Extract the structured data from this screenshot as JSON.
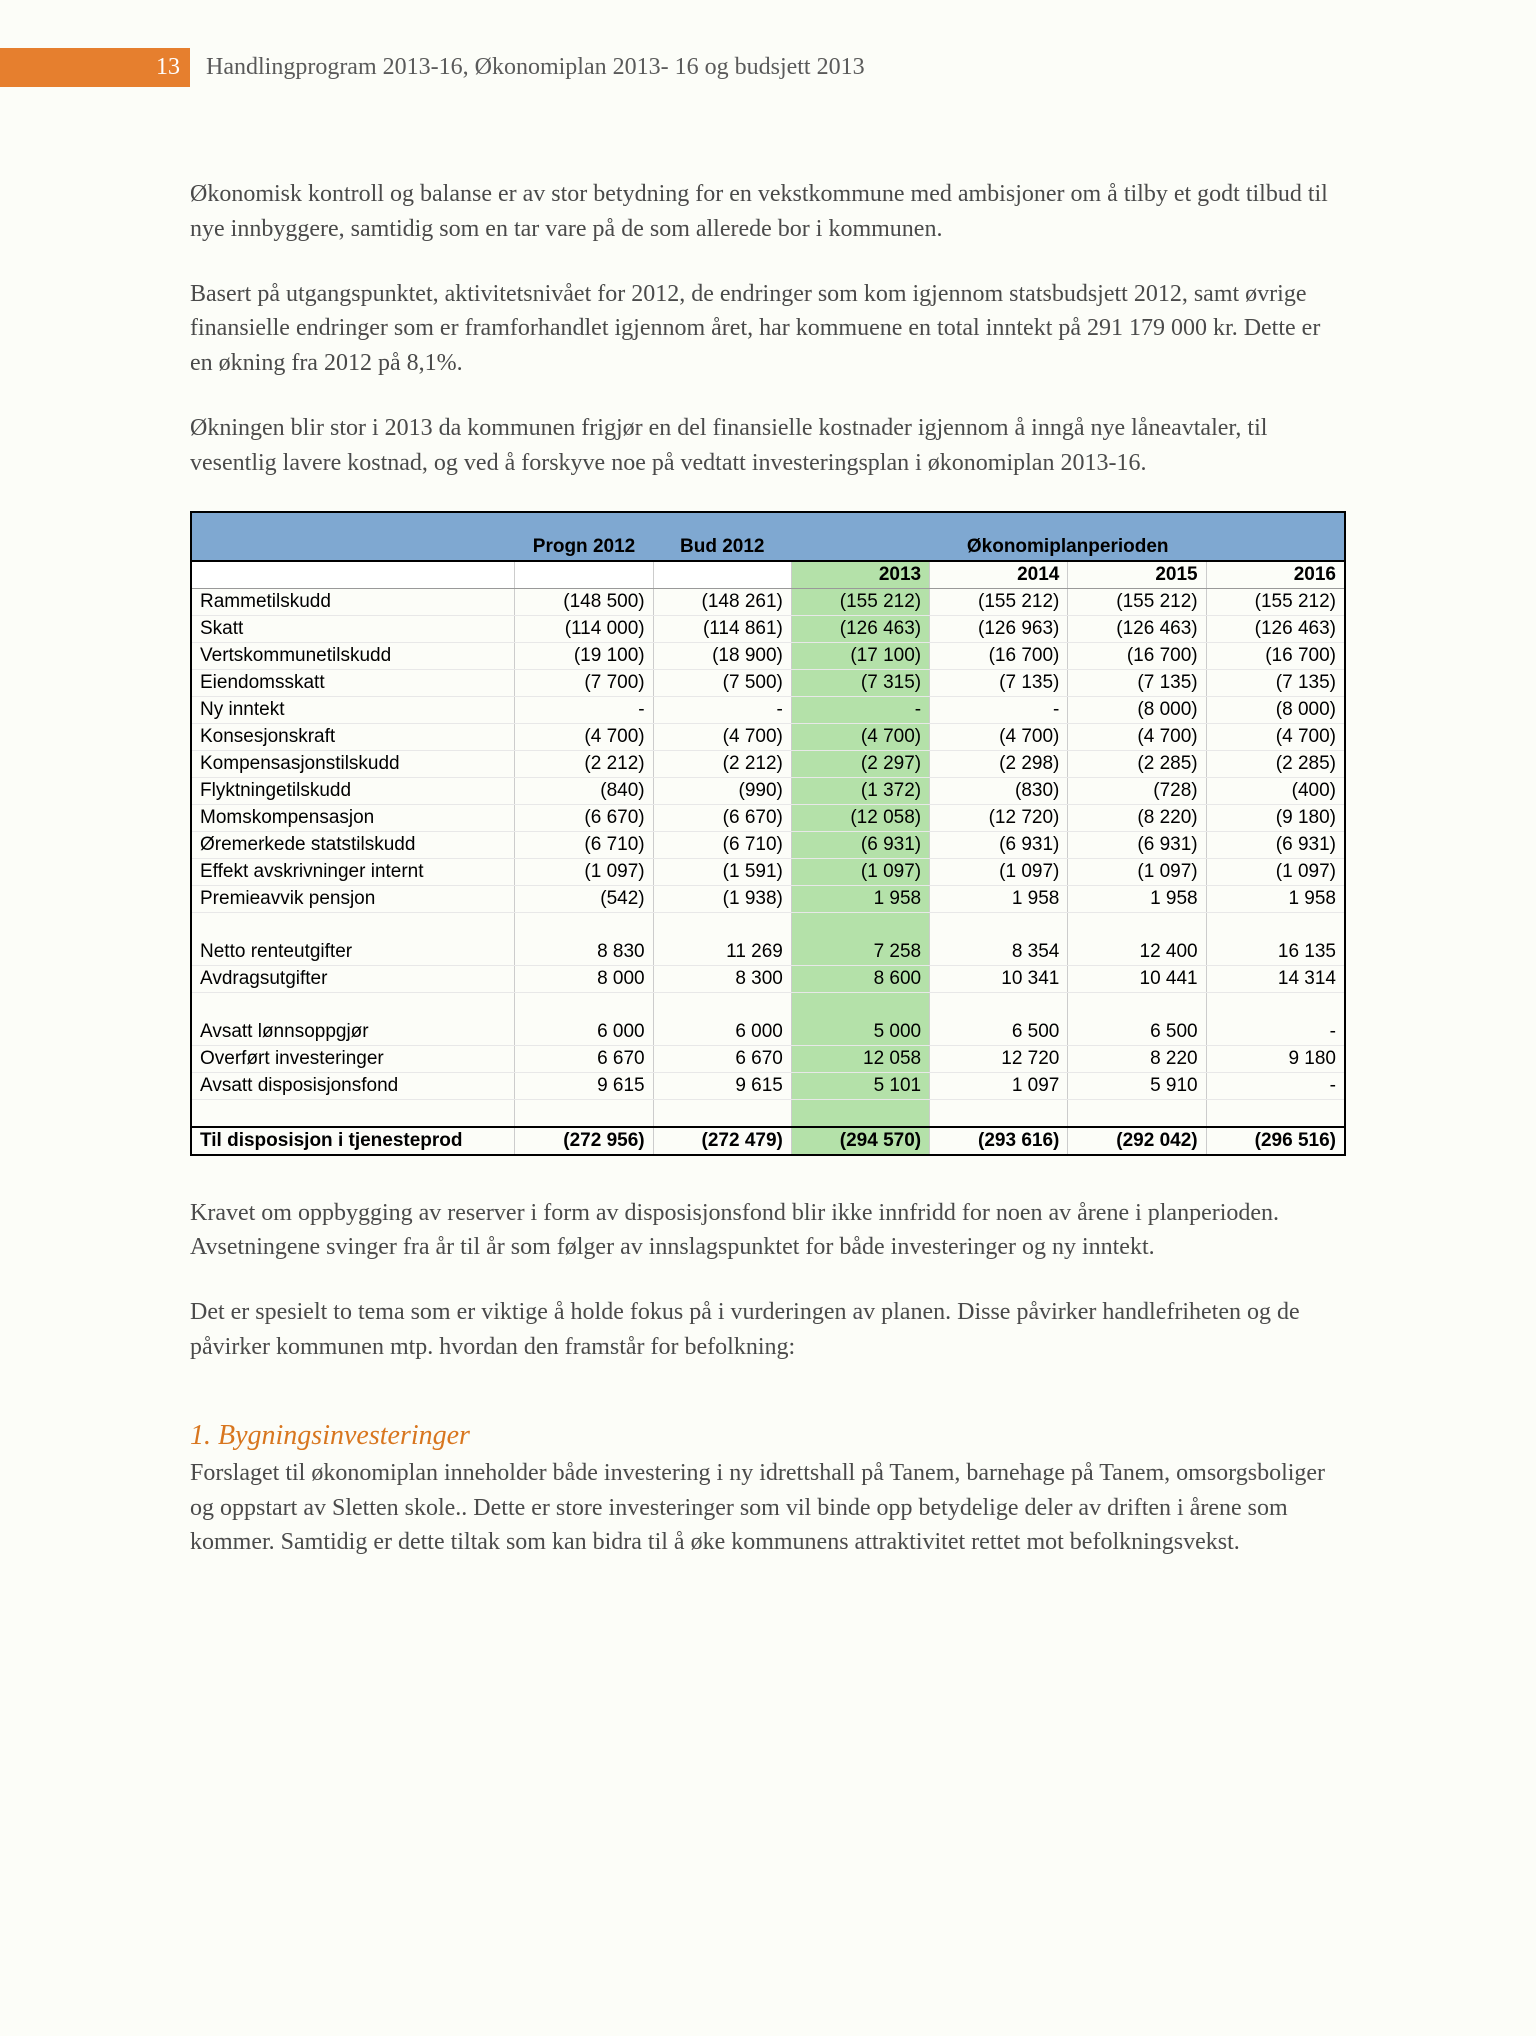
{
  "header": {
    "page_number": "13",
    "title": "Handlingprogram 2013-16, Økonomiplan 2013- 16 og budsjett 2013"
  },
  "paragraphs": {
    "p1": "Økonomisk kontroll og balanse er av stor betydning for en vekstkommune med ambisjoner om å tilby et godt tilbud til nye innbyggere, samtidig som en tar vare på de som allerede bor i kommunen.",
    "p2": "Basert på utgangspunktet, aktivitetsnivået for 2012, de endringer som kom igjennom statsbudsjett 2012, samt øvrige finansielle endringer som er framforhandlet igjennom året, har kommuene en total inntekt på 291 179 000 kr. Dette er en økning fra 2012 på 8,1%.",
    "p3": "Økningen blir stor i 2013 da kommunen frigjør en del finansielle kostnader igjennom å inngå nye låneavtaler, til vesentlig lavere kostnad, og ved å forskyve noe på vedtatt investeringsplan i økonomiplan 2013-16.",
    "p4": "Kravet om oppbygging av reserver i form av disposisjonsfond blir ikke innfridd for noen av årene i planperioden. Avsetningene svinger fra år til år som følger av innslagspunktet for både investeringer og ny inntekt.",
    "p5": "Det er spesielt to tema som er viktige å holde fokus på i vurderingen av planen. Disse påvirker handlefriheten og de påvirker kommunen mtp. hvordan den framstår for befolkning:",
    "section1_title": "1. Bygningsinvesteringer",
    "p6": "Forslaget til økonomiplan inneholder både investering i ny idrettshall på Tanem, barnehage på Tanem, omsorgsboliger og oppstart av Sletten skole.. Dette er store investeringer som vil binde opp betydelige deler av driften i årene som kommer. Samtidig er dette tiltak som kan bidra til å øke kommunens attraktivitet rettet mot befolkningsvekst."
  },
  "table": {
    "type": "table",
    "header_merge": {
      "progn": "Progn 2012",
      "bud": "Bud 2012",
      "plan": "Økonomiplanperioden"
    },
    "years": [
      "2013",
      "2014",
      "2015",
      "2016"
    ],
    "highlight_col_index": 2,
    "colors": {
      "header_bg": "#7fa8d1",
      "highlight_bg": "#b4e1a9",
      "border": "#000000",
      "grid": "#cccccc",
      "row_line": "#e8e8e8"
    },
    "fontsize": 19,
    "rows": [
      {
        "label": "Rammetilskudd",
        "v": [
          "(148 500)",
          "(148 261)",
          "(155 212)",
          "(155 212)",
          "(155 212)",
          "(155 212)"
        ]
      },
      {
        "label": "Skatt",
        "v": [
          "(114 000)",
          "(114 861)",
          "(126 463)",
          "(126 963)",
          "(126 463)",
          "(126 463)"
        ]
      },
      {
        "label": "Vertskommunetilskudd",
        "v": [
          "(19 100)",
          "(18 900)",
          "(17 100)",
          "(16 700)",
          "(16 700)",
          "(16 700)"
        ]
      },
      {
        "label": "Eiendomsskatt",
        "v": [
          "(7 700)",
          "(7 500)",
          "(7 315)",
          "(7 135)",
          "(7 135)",
          "(7 135)"
        ]
      },
      {
        "label": "Ny inntekt",
        "v": [
          "-",
          "-",
          "-",
          "-",
          "(8 000)",
          "(8 000)"
        ]
      },
      {
        "label": "Konsesjonskraft",
        "v": [
          "(4 700)",
          "(4 700)",
          "(4 700)",
          "(4 700)",
          "(4 700)",
          "(4 700)"
        ]
      },
      {
        "label": "Kompensasjonstilskudd",
        "v": [
          "(2 212)",
          "(2 212)",
          "(2 297)",
          "(2 298)",
          "(2 285)",
          "(2 285)"
        ]
      },
      {
        "label": "Flyktningetilskudd",
        "v": [
          "(840)",
          "(990)",
          "(1 372)",
          "(830)",
          "(728)",
          "(400)"
        ]
      },
      {
        "label": "Momskompensasjon",
        "v": [
          "(6 670)",
          "(6 670)",
          "(12 058)",
          "(12 720)",
          "(8 220)",
          "(9 180)"
        ]
      },
      {
        "label": "Øremerkede statstilskudd",
        "v": [
          "(6 710)",
          "(6 710)",
          "(6 931)",
          "(6 931)",
          "(6 931)",
          "(6 931)"
        ]
      },
      {
        "label": "Effekt avskrivninger internt",
        "v": [
          "(1 097)",
          "(1 591)",
          "(1 097)",
          "(1 097)",
          "(1 097)",
          "(1 097)"
        ]
      },
      {
        "label": "Premieavvik pensjon",
        "v": [
          "(542)",
          "(1 938)",
          "1 958",
          "1 958",
          "1 958",
          "1 958"
        ]
      },
      {
        "blank": true
      },
      {
        "label": "Netto renteutgifter",
        "v": [
          "8 830",
          "11 269",
          "7 258",
          "8 354",
          "12 400",
          "16 135"
        ]
      },
      {
        "label": "Avdragsutgifter",
        "v": [
          "8 000",
          "8 300",
          "8 600",
          "10 341",
          "10 441",
          "14 314"
        ]
      },
      {
        "blank": true
      },
      {
        "label": "Avsatt lønnsoppgjør",
        "v": [
          "6 000",
          "6 000",
          "5 000",
          "6 500",
          "6 500",
          "-"
        ]
      },
      {
        "label": "Overført investeringer",
        "v": [
          "6 670",
          "6 670",
          "12 058",
          "12 720",
          "8 220",
          "9 180"
        ]
      },
      {
        "label": "Avsatt disposisjonsfond",
        "v": [
          "9 615",
          "9 615",
          "5 101",
          "1 097",
          "5 910",
          "-"
        ]
      },
      {
        "blank": true
      }
    ],
    "total": {
      "label": "Til disposisjon i tjenesteprod",
      "v": [
        "(272 956)",
        "(272 479)",
        "(294 570)",
        "(293 616)",
        "(292 042)",
        "(296 516)"
      ]
    }
  }
}
